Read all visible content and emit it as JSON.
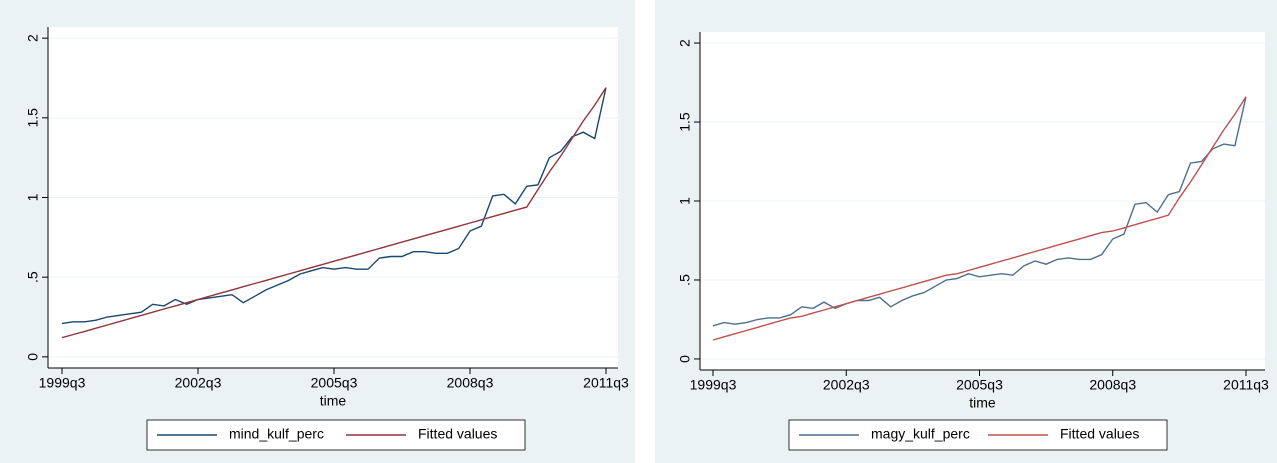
{
  "chart_data": [
    {
      "type": "line",
      "xlabel": "time",
      "categories": [
        "1999q3",
        null,
        null,
        null,
        null,
        null,
        null,
        null,
        null,
        null,
        null,
        null,
        "2002q3",
        null,
        null,
        null,
        null,
        null,
        null,
        null,
        null,
        null,
        null,
        null,
        "2005q3",
        null,
        null,
        null,
        null,
        null,
        null,
        null,
        null,
        null,
        null,
        null,
        "2008q3",
        null,
        null,
        null,
        null,
        null,
        null,
        null,
        null,
        null,
        null,
        null,
        "2011q3"
      ],
      "ylim": [
        -0.07,
        2.07
      ],
      "yticks": [
        0,
        {
          "value": 0.5,
          "label": ".5"
        },
        1,
        1.5,
        2
      ],
      "grid": true,
      "legend": "bottom",
      "series": [
        {
          "name": "mind_kulf_perc",
          "color": "#1a476f",
          "values": [
            0.21,
            0.22,
            0.22,
            0.23,
            0.25,
            0.26,
            0.27,
            0.28,
            0.33,
            0.32,
            0.36,
            0.33,
            0.36,
            0.37,
            0.38,
            0.39,
            0.34,
            0.38,
            0.42,
            0.45,
            0.48,
            0.52,
            0.54,
            0.56,
            0.55,
            0.56,
            0.55,
            0.55,
            0.62,
            0.63,
            0.63,
            0.66,
            0.66,
            0.65,
            0.65,
            0.68,
            0.79,
            0.82,
            1.01,
            1.02,
            0.96,
            1.07,
            1.08,
            1.25,
            1.29,
            1.38,
            1.41,
            1.37,
            1.69
          ]
        },
        {
          "name": "Fitted values",
          "color": "#90353b",
          "values": [
            0.12,
            0.14,
            0.16,
            0.18,
            0.2,
            0.22,
            0.24,
            0.26,
            0.28,
            0.3,
            0.32,
            0.34,
            0.36,
            0.38,
            0.4,
            0.42,
            0.44,
            0.46,
            0.48,
            0.5,
            0.52,
            0.54,
            0.56,
            0.58,
            0.6,
            0.62,
            0.64,
            0.66,
            0.68,
            0.7,
            0.72,
            0.74,
            0.76,
            0.78,
            0.8,
            0.82,
            0.84,
            0.86,
            0.88,
            0.9,
            0.92,
            0.94,
            1.05,
            1.16,
            1.26,
            1.37,
            1.48,
            1.58,
            1.69
          ]
        }
      ]
    },
    {
      "type": "line",
      "xlabel": "time",
      "categories": [
        "1999q3",
        null,
        null,
        null,
        null,
        null,
        null,
        null,
        null,
        null,
        null,
        null,
        "2002q3",
        null,
        null,
        null,
        null,
        null,
        null,
        null,
        null,
        null,
        null,
        null,
        "2005q3",
        null,
        null,
        null,
        null,
        null,
        null,
        null,
        null,
        null,
        null,
        null,
        "2008q3",
        null,
        null,
        null,
        null,
        null,
        null,
        null,
        null,
        null,
        null,
        null,
        "2011q3"
      ],
      "ylim": [
        -0.07,
        2.07
      ],
      "yticks": [
        0,
        {
          "value": 0.5,
          "label": ".5"
        },
        1,
        1.5,
        2
      ],
      "grid": true,
      "legend": "bottom",
      "series": [
        {
          "name": "magy_kulf_perc",
          "color": "#4f6f8c",
          "values": [
            0.21,
            0.23,
            0.22,
            0.23,
            0.25,
            0.26,
            0.26,
            0.28,
            0.33,
            0.32,
            0.36,
            0.32,
            0.35,
            0.37,
            0.37,
            0.39,
            0.33,
            0.37,
            0.4,
            0.42,
            0.46,
            0.5,
            0.51,
            0.54,
            0.52,
            0.53,
            0.54,
            0.53,
            0.59,
            0.62,
            0.6,
            0.63,
            0.64,
            0.63,
            0.63,
            0.66,
            0.76,
            0.79,
            0.98,
            0.99,
            0.93,
            1.04,
            1.06,
            1.24,
            1.25,
            1.33,
            1.36,
            1.35,
            1.66
          ]
        },
        {
          "name": "Fitted values",
          "color": "#c0504d",
          "values": [
            0.12,
            0.14,
            0.16,
            0.18,
            0.2,
            0.22,
            0.24,
            0.26,
            0.27,
            0.29,
            0.31,
            0.33,
            0.35,
            0.37,
            0.39,
            0.41,
            0.43,
            0.45,
            0.47,
            0.49,
            0.51,
            0.53,
            0.54,
            0.56,
            0.58,
            0.6,
            0.62,
            0.64,
            0.66,
            0.68,
            0.7,
            0.72,
            0.74,
            0.76,
            0.78,
            0.8,
            0.81,
            0.83,
            0.85,
            0.87,
            0.89,
            0.91,
            1.02,
            1.12,
            1.23,
            1.34,
            1.45,
            1.55,
            1.66
          ]
        }
      ]
    }
  ]
}
